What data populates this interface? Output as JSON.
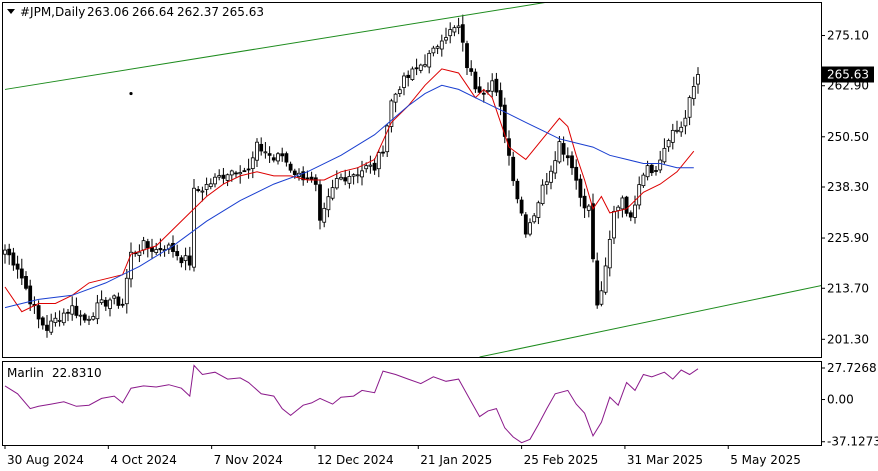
{
  "header": {
    "symbol": "#JPM,Daily",
    "open": "263.06",
    "high": "266.64",
    "low": "262.37",
    "close": "265.63"
  },
  "indicator": {
    "name": "Marlin",
    "value": "22.8310",
    "axis_labels": [
      "27.7268",
      "0.00",
      "-37.1273"
    ]
  },
  "chart_data": [
    {
      "type": "candlestick",
      "title": "",
      "ylim": [
        197.0,
        283.0
      ],
      "y_tick_labels": [
        "275.10",
        "262.90",
        "250.50",
        "238.30",
        "225.90",
        "213.70",
        "201.30"
      ],
      "x_tick_labels": [
        "30 Aug 2024",
        "4 Oct 2024",
        "7 Nov 2024",
        "12 Dec 2024",
        "21 Jan 2025",
        "25 Feb 2025",
        "31 Mar 2025",
        "5 May 2025"
      ],
      "last_price_label": "265.63",
      "close_path": [
        [
          0,
          223
        ],
        [
          3,
          219
        ],
        [
          6,
          211
        ],
        [
          8,
          206
        ],
        [
          10,
          204
        ],
        [
          13,
          207
        ],
        [
          16,
          209
        ],
        [
          19,
          206
        ],
        [
          22,
          209
        ],
        [
          25,
          211
        ],
        [
          28,
          210
        ],
        [
          30,
          222
        ],
        [
          33,
          224
        ],
        [
          36,
          223
        ],
        [
          38,
          224
        ],
        [
          40,
          223
        ],
        [
          42,
          221
        ],
        [
          44,
          220
        ],
        [
          45,
          237
        ],
        [
          47,
          238
        ],
        [
          50,
          240
        ],
        [
          53,
          242
        ],
        [
          56,
          243
        ],
        [
          58,
          242
        ],
        [
          60,
          248
        ],
        [
          62,
          247
        ],
        [
          64,
          245
        ],
        [
          66,
          246
        ],
        [
          68,
          243
        ],
        [
          70,
          241
        ],
        [
          72,
          241
        ],
        [
          74,
          238
        ],
        [
          75,
          229
        ],
        [
          77,
          235
        ],
        [
          79,
          240
        ],
        [
          81,
          241
        ],
        [
          84,
          242
        ],
        [
          86,
          243
        ],
        [
          88,
          243
        ],
        [
          90,
          248
        ],
        [
          92,
          259
        ],
        [
          94,
          263
        ],
        [
          96,
          265
        ],
        [
          98,
          267
        ],
        [
          100,
          269
        ],
        [
          102,
          271
        ],
        [
          104,
          275
        ],
        [
          106,
          276
        ],
        [
          108,
          277
        ],
        [
          110,
          268
        ],
        [
          112,
          263
        ],
        [
          114,
          262
        ],
        [
          116,
          264
        ],
        [
          118,
          257
        ],
        [
          120,
          246
        ],
        [
          122,
          236
        ],
        [
          124,
          228
        ],
        [
          126,
          232
        ],
        [
          128,
          238
        ],
        [
          130,
          243
        ],
        [
          132,
          249
        ],
        [
          135,
          244
        ],
        [
          137,
          236
        ],
        [
          139,
          233
        ],
        [
          141,
          209
        ],
        [
          143,
          218
        ],
        [
          145,
          232
        ],
        [
          147,
          236
        ],
        [
          149,
          230
        ],
        [
          151,
          240
        ],
        [
          153,
          244
        ],
        [
          155,
          242
        ],
        [
          157,
          248
        ],
        [
          159,
          251
        ],
        [
          161,
          253
        ],
        [
          163,
          259
        ],
        [
          165,
          265.63
        ]
      ],
      "series": [
        {
          "name": "",
          "color": "#dd0000",
          "values": [
            [
              0,
              214
            ],
            [
              4,
              208
            ],
            [
              8,
              210
            ],
            [
              12,
              210
            ],
            [
              16,
              212
            ],
            [
              20,
              215
            ],
            [
              24,
              216
            ],
            [
              28,
              217
            ],
            [
              30,
              222
            ],
            [
              33,
              223
            ],
            [
              36,
              224
            ],
            [
              40,
              228
            ],
            [
              44,
              232
            ],
            [
              48,
              236
            ],
            [
              52,
              239
            ],
            [
              56,
              241
            ],
            [
              60,
              242
            ],
            [
              64,
              241
            ],
            [
              68,
              241
            ],
            [
              72,
              240
            ],
            [
              76,
              240
            ],
            [
              80,
              242
            ],
            [
              84,
              243
            ],
            [
              88,
              245
            ],
            [
              92,
              254
            ],
            [
              96,
              258
            ],
            [
              100,
              263
            ],
            [
              104,
              267
            ],
            [
              108,
              266
            ],
            [
              112,
              260
            ],
            [
              114,
              262
            ],
            [
              116,
              260
            ],
            [
              120,
              248
            ],
            [
              124,
              245
            ],
            [
              128,
              250
            ],
            [
              132,
              255
            ],
            [
              134,
              253
            ],
            [
              136,
              246
            ],
            [
              138,
              240
            ],
            [
              140,
              233
            ],
            [
              142,
              236
            ],
            [
              144,
              232
            ],
            [
              148,
              233
            ],
            [
              152,
              237
            ],
            [
              156,
              239
            ],
            [
              160,
              242
            ],
            [
              164,
              247
            ]
          ]
        },
        {
          "name": "",
          "color": "#1a3fd0",
          "values": [
            [
              0,
              209
            ],
            [
              8,
              211
            ],
            [
              16,
              212
            ],
            [
              24,
              215
            ],
            [
              32,
              219
            ],
            [
              40,
              224
            ],
            [
              48,
              230
            ],
            [
              56,
              235
            ],
            [
              64,
              239
            ],
            [
              72,
              242
            ],
            [
              80,
              246
            ],
            [
              88,
              251
            ],
            [
              96,
              258
            ],
            [
              100,
              261
            ],
            [
              104,
              263
            ],
            [
              108,
              262
            ],
            [
              112,
              260
            ],
            [
              116,
              258
            ],
            [
              120,
              256
            ],
            [
              124,
              254
            ],
            [
              128,
              252
            ],
            [
              132,
              250
            ],
            [
              136,
              249
            ],
            [
              140,
              248
            ],
            [
              144,
              246
            ],
            [
              148,
              245
            ],
            [
              152,
              244
            ],
            [
              156,
              244
            ],
            [
              160,
              243
            ],
            [
              164,
              243
            ]
          ]
        }
      ],
      "trendlines": [
        {
          "color": "#1e8c1e",
          "from": [
            0,
            262.0
          ],
          "to": [
            140,
            285.0
          ]
        },
        {
          "color": "#1e8c1e",
          "from": [
            113,
            197.0
          ],
          "to": [
            195,
            214.5
          ]
        }
      ],
      "marker": {
        "x": 30,
        "y": 261
      }
    },
    {
      "type": "line",
      "title": "",
      "ylim": [
        -40,
        33
      ],
      "y_tick_labels": [
        "27.7268",
        "0.00",
        "-37.1273"
      ],
      "series": [
        {
          "name": "Marlin",
          "color": "#8b1a8b",
          "values": [
            [
              0,
              12
            ],
            [
              3,
              5
            ],
            [
              6,
              -8
            ],
            [
              8,
              -6
            ],
            [
              11,
              -4
            ],
            [
              14,
              -2
            ],
            [
              17,
              -6
            ],
            [
              20,
              -5
            ],
            [
              23,
              1
            ],
            [
              26,
              3
            ],
            [
              28,
              -3
            ],
            [
              30,
              10
            ],
            [
              33,
              12
            ],
            [
              36,
              11
            ],
            [
              39,
              13
            ],
            [
              42,
              10
            ],
            [
              44,
              3
            ],
            [
              45,
              30
            ],
            [
              47,
              22
            ],
            [
              50,
              24
            ],
            [
              53,
              18
            ],
            [
              56,
              19
            ],
            [
              58,
              15
            ],
            [
              61,
              5
            ],
            [
              64,
              3
            ],
            [
              66,
              -8
            ],
            [
              68,
              -14
            ],
            [
              71,
              -5
            ],
            [
              73,
              -3
            ],
            [
              75,
              1
            ],
            [
              78,
              -4
            ],
            [
              80,
              2
            ],
            [
              83,
              3
            ],
            [
              85,
              8
            ],
            [
              88,
              6
            ],
            [
              90,
              25
            ],
            [
              93,
              22
            ],
            [
              96,
              18
            ],
            [
              99,
              14
            ],
            [
              102,
              20
            ],
            [
              105,
              16
            ],
            [
              108,
              18
            ],
            [
              111,
              -2
            ],
            [
              113,
              -15
            ],
            [
              115,
              -10
            ],
            [
              117,
              -8
            ],
            [
              119,
              -25
            ],
            [
              121,
              -33
            ],
            [
              123,
              -38
            ],
            [
              125,
              -35
            ],
            [
              127,
              -22
            ],
            [
              129,
              -8
            ],
            [
              131,
              5
            ],
            [
              134,
              8
            ],
            [
              136,
              -4
            ],
            [
              138,
              -12
            ],
            [
              140,
              -32
            ],
            [
              142,
              -20
            ],
            [
              144,
              2
            ],
            [
              146,
              -5
            ],
            [
              148,
              15
            ],
            [
              150,
              8
            ],
            [
              152,
              22
            ],
            [
              154,
              20
            ],
            [
              157,
              24
            ],
            [
              159,
              18
            ],
            [
              161,
              26
            ],
            [
              163,
              22
            ],
            [
              165,
              27
            ]
          ]
        }
      ]
    }
  ]
}
